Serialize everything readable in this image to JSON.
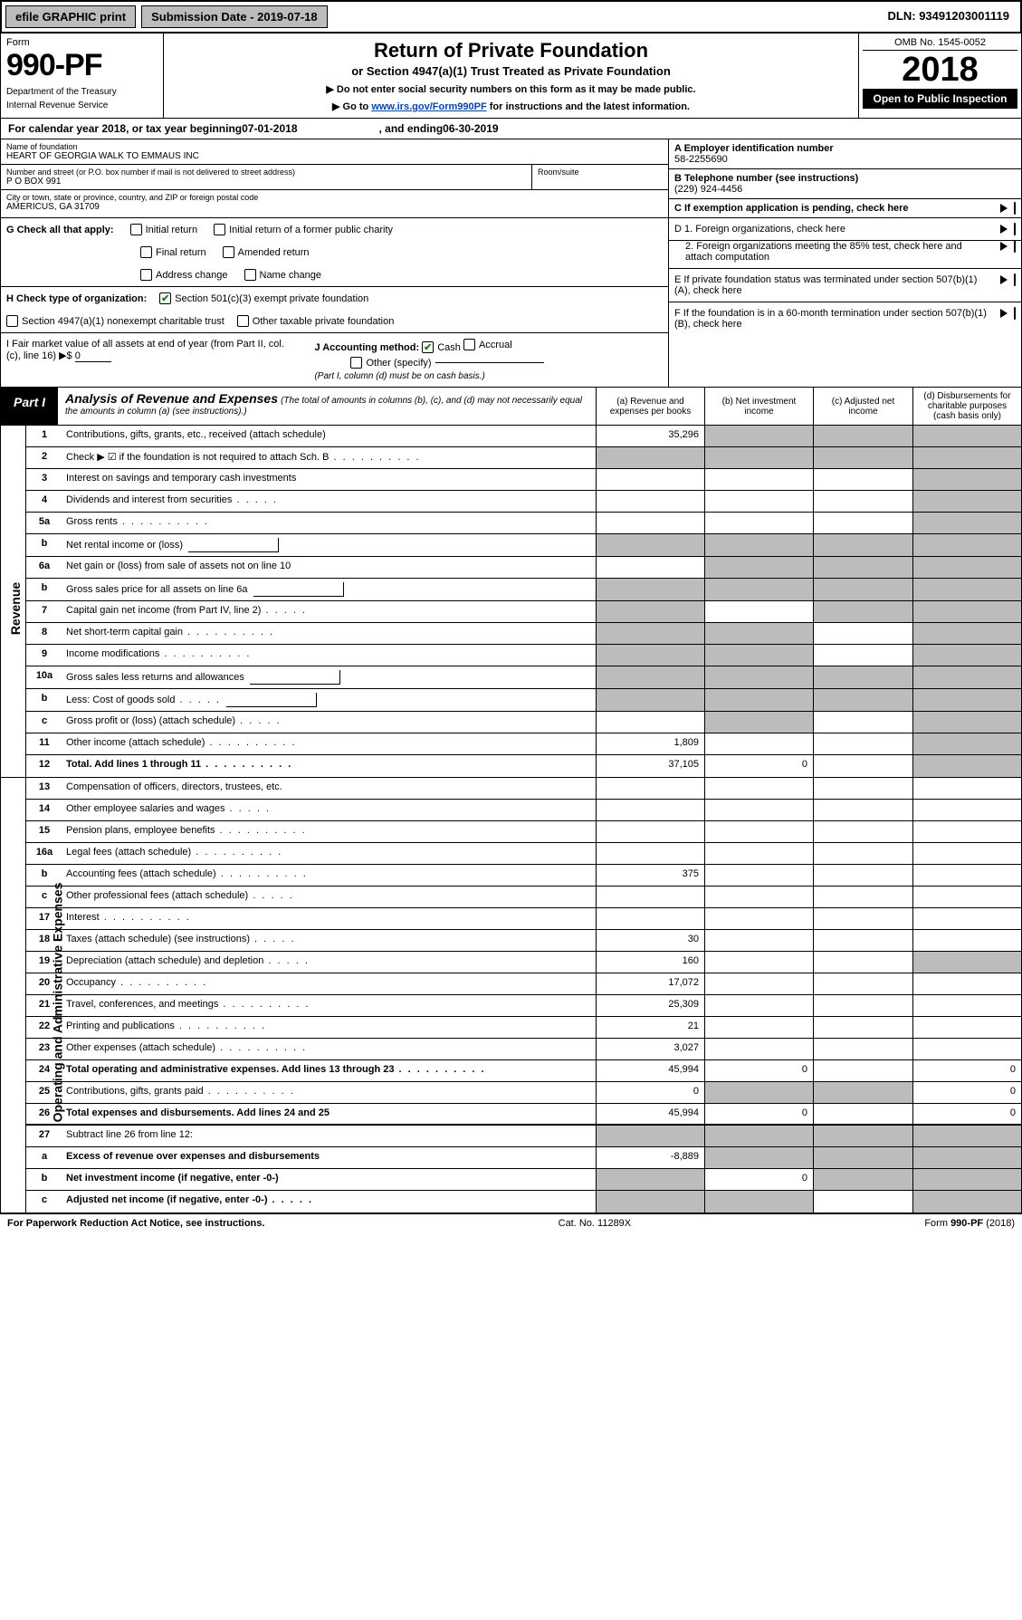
{
  "topbar": {
    "efile": "efile GRAPHIC print",
    "submission_label": "Submission Date - ",
    "submission_date": "2019-07-18",
    "dln_label": "DLN: ",
    "dln": "93491203001119"
  },
  "header": {
    "form_word": "Form",
    "form_number": "990-PF",
    "dept1": "Department of the Treasury",
    "dept2": "Internal Revenue Service",
    "title": "Return of Private Foundation",
    "subtitle": "or Section 4947(a)(1) Trust Treated as Private Foundation",
    "note1": "▶ Do not enter social security numbers on this form as it may be made public.",
    "note2_pre": "▶ Go to ",
    "note2_link": "www.irs.gov/Form990PF",
    "note2_post": " for instructions and the latest information.",
    "omb": "OMB No. 1545-0052",
    "year": "2018",
    "open": "Open to Public Inspection"
  },
  "calendar": {
    "text1": "For calendar year 2018, or tax year beginning ",
    "begin": "07-01-2018",
    "text2": ", and ending ",
    "end": "06-30-2019"
  },
  "entity": {
    "name_label": "Name of foundation",
    "name": "HEART OF GEORGIA WALK TO EMMAUS INC",
    "addr_label": "Number and street (or P.O. box number if mail is not delivered to street address)",
    "addr": "P O BOX 991",
    "room_label": "Room/suite",
    "city_label": "City or town, state or province, country, and ZIP or foreign postal code",
    "city": "AMERICUS, GA  31709",
    "ein_label": "A Employer identification number",
    "ein": "58-2255690",
    "phone_label": "B Telephone number (see instructions)",
    "phone": "(229) 924-4456",
    "c_label": "C If exemption application is pending, check here"
  },
  "checks": {
    "g_label": "G Check all that apply:",
    "g_items": [
      "Initial return",
      "Initial return of a former public charity",
      "Final return",
      "Amended return",
      "Address change",
      "Name change"
    ],
    "h_label": "H Check type of organization:",
    "h_501c3": "Section 501(c)(3) exempt private foundation",
    "h_4947": "Section 4947(a)(1) nonexempt charitable trust",
    "h_other": "Other taxable private foundation",
    "i_label": "I Fair market value of all assets at end of year (from Part II, col. (c), line 16) ▶$",
    "i_value": "0",
    "j_label": "J Accounting method:",
    "j_cash": "Cash",
    "j_accrual": "Accrual",
    "j_other": "Other (specify)",
    "j_note": "(Part I, column (d) must be on cash basis.)",
    "d1": "D 1. Foreign organizations, check here",
    "d2": "2. Foreign organizations meeting the 85% test, check here and attach computation",
    "e_label": "E  If private foundation status was terminated under section 507(b)(1)(A), check here",
    "f_label": "F  If the foundation is in a 60-month termination under section 507(b)(1)(B), check here"
  },
  "part1": {
    "tag": "Part I",
    "title": "Analysis of Revenue and Expenses",
    "note": "(The total of amounts in columns (b), (c), and (d) may not necessarily equal the amounts in column (a) (see instructions).)",
    "col_a": "(a)   Revenue and expenses per books",
    "col_b": "(b)  Net investment income",
    "col_c": "(c)  Adjusted net income",
    "col_d": "(d)  Disbursements for charitable purposes (cash basis only)"
  },
  "side": {
    "revenue": "Revenue",
    "expenses": "Operating and Administrative Expenses"
  },
  "rows": [
    {
      "n": "1",
      "d": "Contributions, gifts, grants, etc., received (attach schedule)",
      "a": "35,296",
      "ga": false,
      "gb": true,
      "gc": true,
      "gd": true
    },
    {
      "n": "2",
      "d": "Check ▶ ☑ if the foundation is not required to attach Sch. B",
      "dots": true,
      "ga": true,
      "gb": true,
      "gc": true,
      "gd": true
    },
    {
      "n": "3",
      "d": "Interest on savings and temporary cash investments",
      "ga": false,
      "gb": false,
      "gc": false,
      "gd": true
    },
    {
      "n": "4",
      "d": "Dividends and interest from securities",
      "dots": "short",
      "ga": false,
      "gb": false,
      "gc": false,
      "gd": true
    },
    {
      "n": "5a",
      "d": "Gross rents",
      "dots": true,
      "ga": false,
      "gb": false,
      "gc": false,
      "gd": true
    },
    {
      "n": "b",
      "d": "Net rental income or (loss)",
      "inline": true,
      "ga": true,
      "gb": true,
      "gc": true,
      "gd": true
    },
    {
      "n": "6a",
      "d": "Net gain or (loss) from sale of assets not on line 10",
      "ga": false,
      "gb": true,
      "gc": true,
      "gd": true
    },
    {
      "n": "b",
      "d": "Gross sales price for all assets on line 6a",
      "inline": true,
      "ga": true,
      "gb": true,
      "gc": true,
      "gd": true
    },
    {
      "n": "7",
      "d": "Capital gain net income (from Part IV, line 2)",
      "dots": "short",
      "ga": true,
      "gb": false,
      "gc": true,
      "gd": true
    },
    {
      "n": "8",
      "d": "Net short-term capital gain",
      "dots": true,
      "ga": true,
      "gb": true,
      "gc": false,
      "gd": true
    },
    {
      "n": "9",
      "d": "Income modifications",
      "dots": true,
      "ga": true,
      "gb": true,
      "gc": false,
      "gd": true
    },
    {
      "n": "10a",
      "d": "Gross sales less returns and allowances",
      "inline": true,
      "ga": true,
      "gb": true,
      "gc": true,
      "gd": true
    },
    {
      "n": "b",
      "d": "Less: Cost of goods sold",
      "dots": "short",
      "inline": true,
      "ga": true,
      "gb": true,
      "gc": true,
      "gd": true
    },
    {
      "n": "c",
      "d": "Gross profit or (loss) (attach schedule)",
      "dots": "short",
      "ga": false,
      "gb": true,
      "gc": false,
      "gd": true
    },
    {
      "n": "11",
      "d": "Other income (attach schedule)",
      "dots": true,
      "a": "1,809",
      "ga": false,
      "gb": false,
      "gc": false,
      "gd": true
    },
    {
      "n": "12",
      "d": "Total. Add lines 1 through 11",
      "bold": true,
      "dots": true,
      "a": "37,105",
      "b": "0",
      "ga": false,
      "gb": false,
      "gc": false,
      "gd": true,
      "div": true
    }
  ],
  "exp_rows": [
    {
      "n": "13",
      "d": "Compensation of officers, directors, trustees, etc."
    },
    {
      "n": "14",
      "d": "Other employee salaries and wages",
      "dots": "short"
    },
    {
      "n": "15",
      "d": "Pension plans, employee benefits",
      "dots": true
    },
    {
      "n": "16a",
      "d": "Legal fees (attach schedule)",
      "dots": true
    },
    {
      "n": "b",
      "d": "Accounting fees (attach schedule)",
      "dots": true,
      "a": "375"
    },
    {
      "n": "c",
      "d": "Other professional fees (attach schedule)",
      "dots": "short"
    },
    {
      "n": "17",
      "d": "Interest",
      "dots": true
    },
    {
      "n": "18",
      "d": "Taxes (attach schedule) (see instructions)",
      "dots": "short",
      "a": "30"
    },
    {
      "n": "19",
      "d": "Depreciation (attach schedule) and depletion",
      "dots": "short",
      "a": "160",
      "gd": true
    },
    {
      "n": "20",
      "d": "Occupancy",
      "dots": true,
      "a": "17,072"
    },
    {
      "n": "21",
      "d": "Travel, conferences, and meetings",
      "dots": true,
      "a": "25,309"
    },
    {
      "n": "22",
      "d": "Printing and publications",
      "dots": true,
      "a": "21"
    },
    {
      "n": "23",
      "d": "Other expenses (attach schedule)",
      "dots": true,
      "a": "3,027"
    },
    {
      "n": "24",
      "d": "Total operating and administrative expenses. Add lines 13 through 23",
      "bold": true,
      "dots": true,
      "a": "45,994",
      "b": "0",
      "dval": "0"
    },
    {
      "n": "25",
      "d": "Contributions, gifts, grants paid",
      "dots": true,
      "a": "0",
      "gb": true,
      "gc": true,
      "dval": "0"
    },
    {
      "n": "26",
      "d": "Total expenses and disbursements. Add lines 24 and 25",
      "bold": true,
      "a": "45,994",
      "b": "0",
      "dval": "0",
      "div": true
    },
    {
      "n": "27",
      "d": "Subtract line 26 from line 12:",
      "ga": true,
      "gb": true,
      "gc": true,
      "gd": true
    },
    {
      "n": "a",
      "d": "Excess of revenue over expenses and disbursements",
      "bold": true,
      "a": "-8,889",
      "gb": true,
      "gc": true,
      "gd": true
    },
    {
      "n": "b",
      "d": "Net investment income (if negative, enter -0-)",
      "bold": true,
      "ga": true,
      "b": "0",
      "gc": true,
      "gd": true
    },
    {
      "n": "c",
      "d": "Adjusted net income (if negative, enter -0-)",
      "bold": true,
      "dots": "short",
      "ga": true,
      "gb": true,
      "gd": true
    }
  ],
  "footer": {
    "left": "For Paperwork Reduction Act Notice, see instructions.",
    "mid": "Cat. No. 11289X",
    "right": "Form 990-PF (2018)"
  }
}
